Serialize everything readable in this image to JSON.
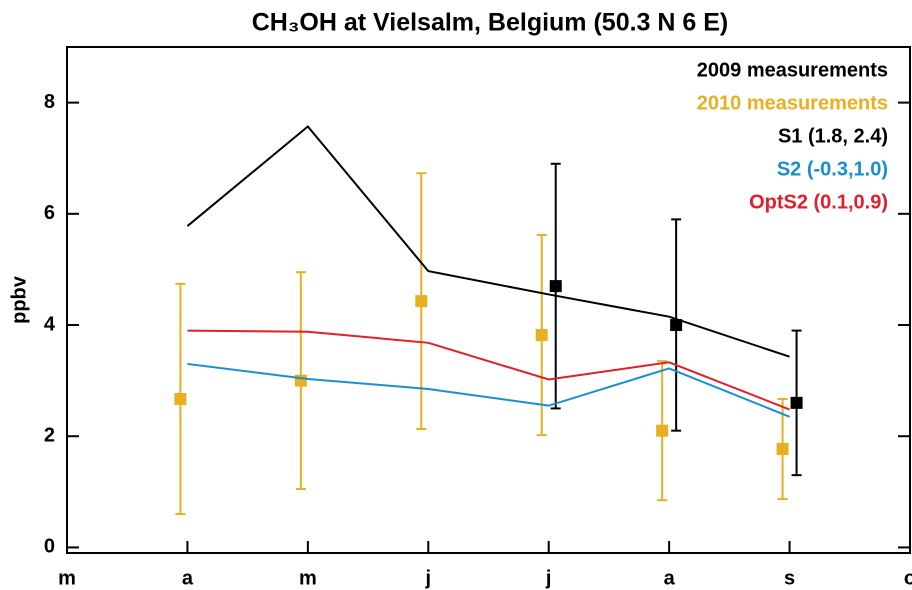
{
  "chart_data": {
    "type": "line",
    "title": "CH₃OH at Vielsalm, Belgium (50.3 N 6 E)",
    "y_label": "ppbv",
    "categories": [
      "m",
      "a",
      "m",
      "j",
      "j",
      "a",
      "s",
      "o"
    ],
    "ylim": [
      -0.1,
      9
    ],
    "yticks": [
      0,
      2,
      4,
      6,
      8
    ],
    "legend": "upper right",
    "series": [
      {
        "name": "2009 measurements",
        "color": "#000000",
        "mode": "markers",
        "values": [
          null,
          null,
          null,
          null,
          4.7,
          4.0,
          2.6,
          null
        ],
        "errors": [
          null,
          null,
          null,
          null,
          2.2,
          1.9,
          1.3,
          null
        ]
      },
      {
        "name": "2010 measurements",
        "color": "#e8b020",
        "mode": "markers",
        "values": [
          null,
          2.67,
          3.0,
          4.43,
          3.82,
          2.1,
          1.77,
          null
        ],
        "errors": [
          null,
          2.07,
          1.95,
          2.3,
          1.8,
          1.25,
          0.9,
          null
        ]
      },
      {
        "name": "S1 (1.8, 2.4)",
        "color": "#000000",
        "mode": "line",
        "values": [
          null,
          5.78,
          7.57,
          4.97,
          4.55,
          4.15,
          3.43,
          null
        ]
      },
      {
        "name": "S2 (-0.3,1.0)",
        "color": "#1a8fd0",
        "mode": "line",
        "values": [
          null,
          3.3,
          3.03,
          2.85,
          2.55,
          3.22,
          2.35,
          null
        ]
      },
      {
        "name": "OptS2 (0.1,0.9)",
        "color": "#e0202a",
        "mode": "line",
        "values": [
          null,
          3.9,
          3.88,
          3.68,
          3.02,
          3.33,
          2.48,
          null
        ]
      }
    ]
  }
}
